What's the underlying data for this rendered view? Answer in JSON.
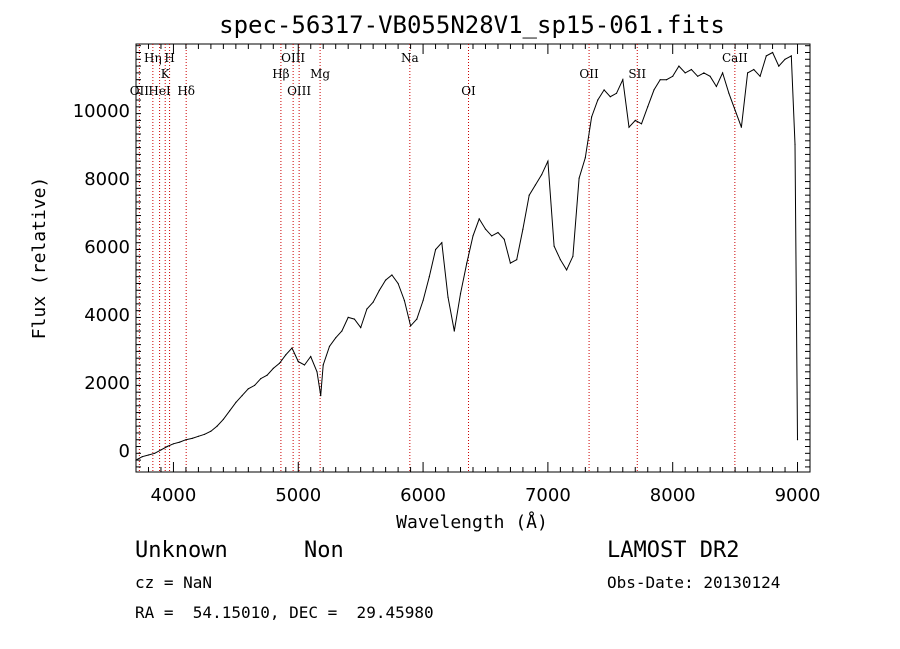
{
  "chart_data": {
    "type": "line",
    "title": "spec-56317-VB055N28V1_sp15-061.fits",
    "xlabel": "Wavelength (Å)",
    "ylabel": "Flux (relative)",
    "xlim": [
      3700,
      9100
    ],
    "ylim": [
      -650,
      11950
    ],
    "x_ticks": [
      4000,
      5000,
      6000,
      7000,
      8000,
      9000
    ],
    "x_tick_labels": [
      "4000",
      "5000",
      "6000",
      "7000",
      "8000",
      "9000"
    ],
    "y_ticks": [
      0,
      2000,
      4000,
      6000,
      8000,
      10000
    ],
    "y_tick_labels": [
      "0",
      "2000",
      "4000",
      "6000",
      "8000",
      "10000"
    ],
    "grid": false,
    "line_color": "#000000",
    "marker_color": "#cc0000",
    "series": [
      {
        "x": [
          3700,
          3750,
          3800,
          3850,
          3900,
          3950,
          4000,
          4050,
          4100,
          4150,
          4200,
          4250,
          4300,
          4350,
          4400,
          4450,
          4500,
          4550,
          4600,
          4650,
          4700,
          4750,
          4800,
          4850,
          4900,
          4950,
          5000,
          5050,
          5100,
          5150,
          5180,
          5200,
          5250,
          5300,
          5350,
          5400,
          5450,
          5500,
          5550,
          5600,
          5650,
          5700,
          5750,
          5800,
          5850,
          5900,
          5950,
          6000,
          6050,
          6100,
          6150,
          6200,
          6250,
          6300,
          6350,
          6400,
          6450,
          6500,
          6550,
          6600,
          6650,
          6700,
          6750,
          6800,
          6850,
          6900,
          6950,
          7000,
          7050,
          7100,
          7150,
          7200,
          7250,
          7300,
          7350,
          7400,
          7450,
          7500,
          7550,
          7600,
          7650,
          7700,
          7750,
          7800,
          7850,
          7900,
          7950,
          8000,
          8050,
          8100,
          8150,
          8200,
          8250,
          8300,
          8350,
          8400,
          8450,
          8500,
          8550,
          8600,
          8650,
          8700,
          8750,
          8800,
          8850,
          8900,
          8950,
          8980,
          9000
        ],
        "y": [
          -300,
          -200,
          -150,
          -100,
          0,
          100,
          180,
          230,
          300,
          340,
          400,
          460,
          550,
          700,
          900,
          1150,
          1400,
          1600,
          1800,
          1900,
          2100,
          2200,
          2400,
          2550,
          2800,
          3000,
          2600,
          2500,
          2750,
          2300,
          1600,
          2500,
          3050,
          3300,
          3500,
          3900,
          3850,
          3600,
          4150,
          4350,
          4700,
          5000,
          5150,
          4900,
          4400,
          3650,
          3850,
          4400,
          5100,
          5900,
          6100,
          4500,
          3500,
          4600,
          5500,
          6300,
          6800,
          6500,
          6300,
          6400,
          6200,
          5500,
          5600,
          6500,
          7500,
          7800,
          8100,
          8500,
          6000,
          5600,
          5300,
          5700,
          8000,
          8600,
          9800,
          10300,
          10600,
          10400,
          10500,
          10900,
          9500,
          9700,
          9600,
          10100,
          10600,
          10900,
          10900,
          11000,
          11300,
          11100,
          11200,
          11000,
          11100,
          11000,
          10700,
          11100,
          10500,
          10000,
          9500,
          11100,
          11200,
          11000,
          11600,
          11700,
          11300,
          11500,
          11600,
          9000,
          300
        ]
      }
    ],
    "line_markers": [
      {
        "label": "OII",
        "x": 3727,
        "row": 3
      },
      {
        "label": "Hη",
        "x": 3835,
        "row": 1
      },
      {
        "label": "HeI",
        "x": 3889,
        "row": 3
      },
      {
        "label": "K",
        "x": 3934,
        "row": 2
      },
      {
        "label": "H",
        "x": 3969,
        "row": 1
      },
      {
        "label": "Hδ",
        "x": 4102,
        "row": 3
      },
      {
        "label": "Hβ",
        "x": 4861,
        "row": 2
      },
      {
        "label": "OIII",
        "x": 4959,
        "row": 1
      },
      {
        "label": "OIII",
        "x": 5007,
        "row": 3
      },
      {
        "label": "Mg",
        "x": 5175,
        "row": 2
      },
      {
        "label": "Na",
        "x": 5894,
        "row": 1
      },
      {
        "label": "OI",
        "x": 6364,
        "row": 3
      },
      {
        "label": "OII",
        "x": 7330,
        "row": 2
      },
      {
        "label": "SII",
        "x": 7716,
        "row": 2
      },
      {
        "label": "CaII",
        "x": 8498,
        "row": 1
      }
    ]
  },
  "info": {
    "obj_class": "Unknown",
    "obj_subclass": "Non",
    "survey": "LAMOST DR2",
    "cz": "cz = NaN",
    "obs_date": "Obs-Date: 20130124",
    "radec": "RA =  54.15010, DEC =  29.45980"
  }
}
